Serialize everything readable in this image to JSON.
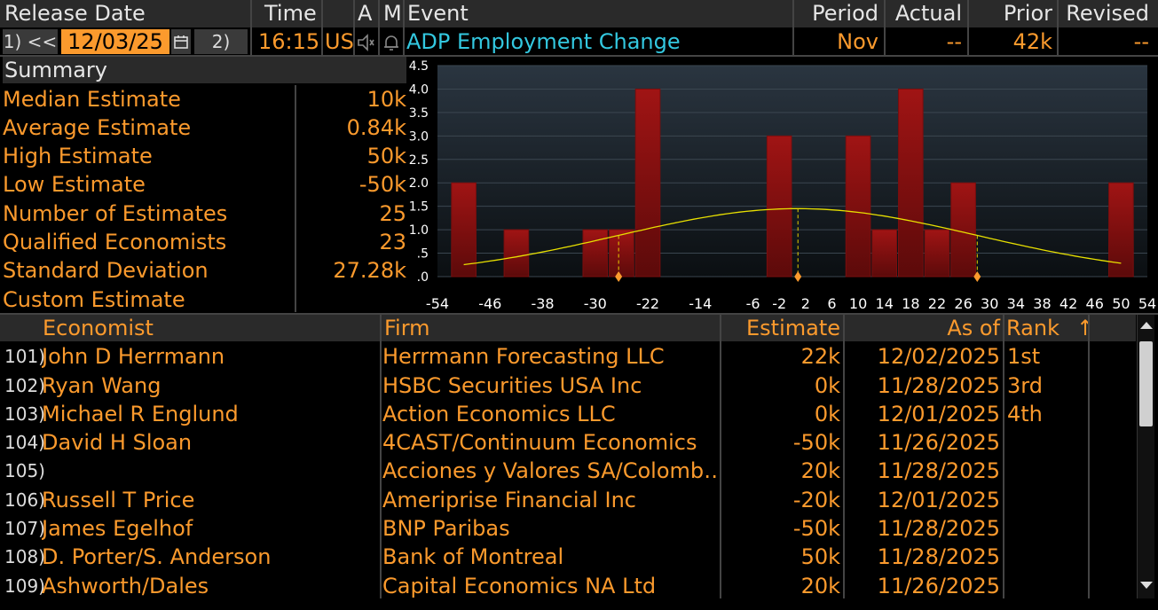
{
  "header": {
    "release_date": "Release Date",
    "time": "Time",
    "a": "A",
    "m": "M",
    "event": "Event",
    "period": "Period",
    "actual": "Actual",
    "prior": "Prior",
    "revised": "Revised"
  },
  "nav": {
    "prev_label": "1) <<",
    "next_label": "2) >>",
    "date": "12/03/25",
    "time": "16:15",
    "country": "US",
    "event": "ADP Employment Change",
    "period": "Nov",
    "actual": "--",
    "prior": "42k",
    "revised": "--"
  },
  "summary": {
    "title": "Summary",
    "rows": [
      {
        "label": "Median Estimate",
        "value": "10k"
      },
      {
        "label": "Average Estimate",
        "value": "0.84k"
      },
      {
        "label": "High Estimate",
        "value": "50k"
      },
      {
        "label": "Low Estimate",
        "value": "-50k"
      },
      {
        "label": "Number of Estimates",
        "value": "25"
      },
      {
        "label": "Qualified Economists",
        "value": "23"
      },
      {
        "label": "Standard Deviation",
        "value": "27.28k"
      },
      {
        "label": "Custom Estimate",
        "value": ""
      }
    ]
  },
  "chart_data": {
    "type": "bar",
    "title": "",
    "xlabel": "",
    "ylabel": "",
    "x_ticks": [
      -54,
      -46,
      -38,
      -30,
      -22,
      -14,
      -6,
      -2,
      2,
      6,
      10,
      14,
      18,
      22,
      26,
      30,
      34,
      38,
      42,
      46,
      50,
      54
    ],
    "y_ticks": [
      0,
      0.5,
      1.0,
      1.5,
      2.0,
      2.5,
      3.0,
      3.5,
      4.0,
      4.5
    ],
    "y_tick_labels": [
      ".0",
      ".5",
      "1.0",
      "1.5",
      "2.0",
      "2.5",
      "3.0",
      "3.5",
      "4.0",
      "4.5"
    ],
    "xlim": [
      -54,
      54
    ],
    "ylim": [
      0,
      4.5
    ],
    "bins": [
      {
        "center": -50,
        "count": 2
      },
      {
        "center": -42,
        "count": 1
      },
      {
        "center": -30,
        "count": 1
      },
      {
        "center": -26,
        "count": 1
      },
      {
        "center": -22,
        "count": 4
      },
      {
        "center": -2,
        "count": 3
      },
      {
        "center": 10,
        "count": 3
      },
      {
        "center": 14,
        "count": 1
      },
      {
        "center": 18,
        "count": 4
      },
      {
        "center": 22,
        "count": 1
      },
      {
        "center": 26,
        "count": 2
      },
      {
        "center": 50,
        "count": 2
      }
    ],
    "bin_width": 4,
    "normal_curve": {
      "mean": 0.84,
      "std": 27.28,
      "peak": 1.45
    },
    "markers": [
      -26.44,
      0.84,
      28.12
    ]
  },
  "table": {
    "columns": {
      "economist": "Economist",
      "firm": "Firm",
      "estimate": "Estimate",
      "as_of": "As of",
      "rank": "Rank",
      "sort_arrow": "↑"
    },
    "rows": [
      {
        "num": "101)",
        "economist": "John D Herrmann",
        "firm": "Herrmann Forecasting LLC",
        "estimate": "22k",
        "as_of": "12/02/2025",
        "rank": "1st"
      },
      {
        "num": "102)",
        "economist": "Ryan Wang",
        "firm": "HSBC Securities USA Inc",
        "estimate": "0k",
        "as_of": "11/28/2025",
        "rank": "3rd"
      },
      {
        "num": "103)",
        "economist": "Michael R Englund",
        "firm": "Action Economics LLC",
        "estimate": "0k",
        "as_of": "12/01/2025",
        "rank": "4th"
      },
      {
        "num": "104)",
        "economist": "David H Sloan",
        "firm": "4CAST/Continuum Economics",
        "estimate": "-50k",
        "as_of": "11/26/2025",
        "rank": ""
      },
      {
        "num": "105)",
        "economist": "",
        "firm": "Acciones y Valores SA/Colomb…",
        "estimate": "20k",
        "as_of": "11/28/2025",
        "rank": ""
      },
      {
        "num": "106)",
        "economist": "Russell T Price",
        "firm": "Ameriprise Financial Inc",
        "estimate": "-20k",
        "as_of": "12/01/2025",
        "rank": ""
      },
      {
        "num": "107)",
        "economist": "James Egelhof",
        "firm": "BNP Paribas",
        "estimate": "-50k",
        "as_of": "11/28/2025",
        "rank": ""
      },
      {
        "num": "108)",
        "economist": "D. Porter/S. Anderson",
        "firm": "Bank of Montreal",
        "estimate": "50k",
        "as_of": "11/28/2025",
        "rank": ""
      },
      {
        "num": "109)",
        "economist": "Ashworth/Dales",
        "firm": "Capital Economics NA Ltd",
        "estimate": "20k",
        "as_of": "11/26/2025",
        "rank": ""
      }
    ]
  },
  "colors": {
    "accent": "#fb9a2d",
    "event": "#33c8e0",
    "bar": "#8b1010",
    "curve": "#e8e000"
  }
}
